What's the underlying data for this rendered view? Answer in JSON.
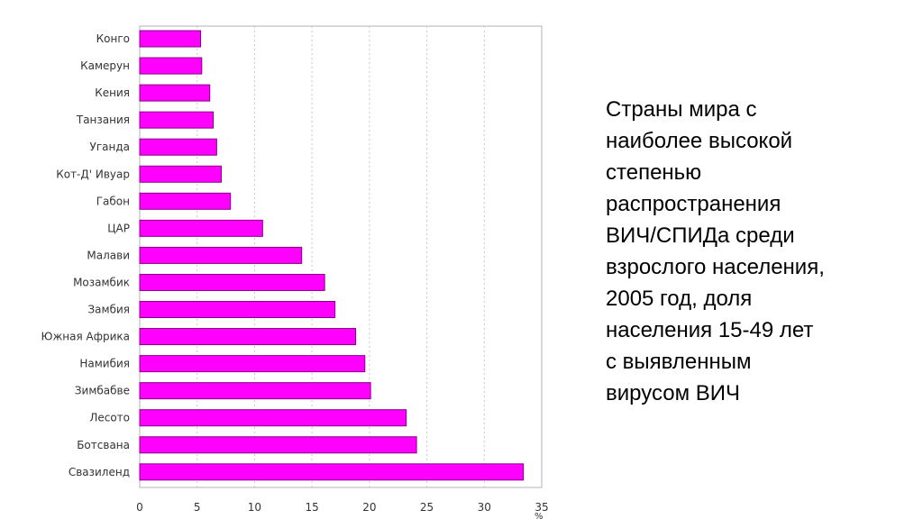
{
  "chart_data": {
    "type": "bar",
    "orientation": "horizontal",
    "categories": [
      "Конго",
      "Камерун",
      "Кения",
      "Танзания",
      "Уганда",
      "Кот-Д' Ивуар",
      "Габон",
      "ЦАР",
      "Малави",
      "Мозамбик",
      "Замбия",
      "Южная Африка",
      "Намибия",
      "Зимбабве",
      "Лесото",
      "Ботсвана",
      "Свазиленд"
    ],
    "values": [
      5.3,
      5.4,
      6.1,
      6.4,
      6.7,
      7.1,
      7.9,
      10.7,
      14.1,
      16.1,
      17.0,
      18.8,
      19.6,
      20.1,
      23.2,
      24.1,
      33.4
    ],
    "xlim": [
      0,
      35
    ],
    "xticks": [
      "0",
      "5",
      "10",
      "15",
      "20",
      "25",
      "30",
      "35"
    ],
    "xlabel": "%",
    "grid": "vertical dashed",
    "bar_color": "#ff00ff",
    "bar_edge_color": "#880088"
  },
  "caption": "Страны мира с\nнаиболее высокой\nстепенью\nраспространения\nВИЧ/СПИДа среди\nвзрослого населения,\n2005 год, доля\nнаселения 15-49 лет\nс выявленным\nвирусом ВИЧ"
}
